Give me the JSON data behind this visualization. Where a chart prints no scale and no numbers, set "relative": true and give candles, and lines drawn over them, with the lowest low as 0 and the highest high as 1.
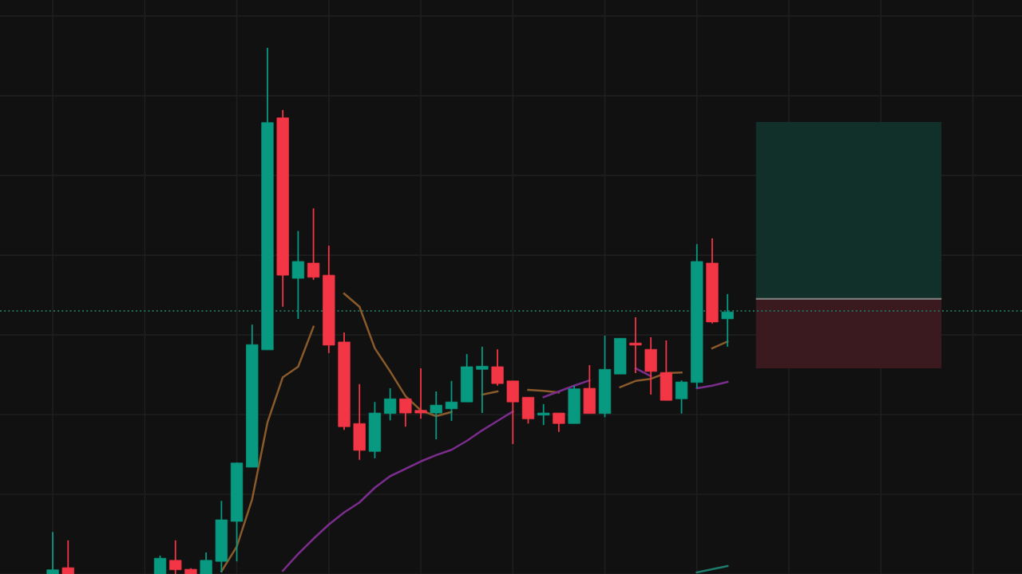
{
  "chart_data": {
    "type": "candlestick",
    "relative": true,
    "grid": true,
    "legend": false,
    "categories": [
      null,
      null,
      null,
      null,
      null,
      null,
      null,
      null,
      null,
      null,
      null,
      null,
      null,
      null,
      null,
      null,
      null,
      null,
      null,
      null,
      null,
      null,
      null,
      null,
      null,
      null,
      null,
      null,
      null,
      null,
      null,
      null,
      null,
      null,
      null,
      null,
      null,
      null,
      null,
      null,
      null,
      null,
      null,
      null,
      null
    ],
    "ohlc": [
      [
        0,
        0.08,
        0,
        0.008
      ],
      [
        0.012,
        0.064,
        0,
        0
      ],
      null,
      null,
      null,
      null,
      null,
      [
        0,
        0.035,
        0,
        0.03
      ],
      [
        0.026,
        0.064,
        0,
        0.008
      ],
      [
        0.009,
        0.011,
        0,
        0
      ],
      [
        0,
        0.041,
        0,
        0.026
      ],
      [
        0.024,
        0.139,
        0.003,
        0.103
      ],
      [
        0.1,
        0.212,
        0.024,
        0.211
      ],
      [
        0.203,
        0.474,
        0.203,
        0.436
      ],
      [
        0.426,
        1,
        0.426,
        0.858
      ],
      [
        0.867,
        0.882,
        0.508,
        0.568
      ],
      [
        0.562,
        0.652,
        0.485,
        0.594
      ],
      [
        0.591,
        0.695,
        0.559,
        0.564
      ],
      [
        0.568,
        0.624,
        0.42,
        0.435
      ],
      [
        0.441,
        0.459,
        0.274,
        0.28
      ],
      [
        0.286,
        0.361,
        0.217,
        0.235
      ],
      [
        0.233,
        0.327,
        0.22,
        0.306
      ],
      [
        0.305,
        0.353,
        0.292,
        0.333
      ],
      [
        0.333,
        0.333,
        0.28,
        0.306
      ],
      [
        0.311,
        0.391,
        0.295,
        0.306
      ],
      [
        0.306,
        0.347,
        0.256,
        0.321
      ],
      [
        0.314,
        0.367,
        0.291,
        0.327
      ],
      [
        0.327,
        0.418,
        0.327,
        0.394
      ],
      [
        0.389,
        0.432,
        0.306,
        0.395
      ],
      [
        0.394,
        0.427,
        0.358,
        0.362
      ],
      [
        0.367,
        0.367,
        0.247,
        0.327
      ],
      [
        0.336,
        0.336,
        0.286,
        0.295
      ],
      [
        0.302,
        0.323,
        0.283,
        0.305
      ],
      [
        0.306,
        0.306,
        0.27,
        0.286
      ],
      [
        0.286,
        0.358,
        0.286,
        0.352
      ],
      [
        0.353,
        0.397,
        0.305,
        0.305
      ],
      [
        0.305,
        0.453,
        0.298,
        0.389
      ],
      [
        0.38,
        0.448,
        0.38,
        0.448
      ],
      [
        0.438,
        0.488,
        0.382,
        0.435
      ],
      [
        0.427,
        0.45,
        0.341,
        0.385
      ],
      [
        0.383,
        0.444,
        0.33,
        0.33
      ],
      [
        0.333,
        0.368,
        0.305,
        0.365
      ],
      [
        0.364,
        0.627,
        0.353,
        0.594
      ],
      [
        0.591,
        0.638,
        0.476,
        0.479
      ],
      [
        0.485,
        0.532,
        0.432,
        0.498
      ]
    ],
    "colors": [
      "#089981",
      "#f23645",
      null,
      null,
      null,
      null,
      null,
      "#089981",
      "#f23645",
      "#f23645",
      "#089981",
      "#089981",
      "#089981",
      "#089981",
      "#089981",
      "#f23645",
      "#089981",
      "#f23645",
      "#f23645",
      "#f23645",
      "#f23645",
      "#089981",
      "#089981",
      "#f23645",
      "#f23645",
      "#089981",
      "#089981",
      "#089981",
      "#089981",
      "#f23645",
      "#f23645",
      "#f23645",
      "#089981",
      "#f23645",
      "#089981",
      "#f23645",
      "#089981",
      "#089981",
      "#f23645",
      "#f23645",
      "#f23645",
      "#089981",
      "#089981",
      "#f23645",
      "#089981"
    ],
    "series": [
      {
        "type": "line",
        "color": "#8a5a2b",
        "values": [
          null,
          null,
          null,
          null,
          null,
          null,
          null,
          null,
          null,
          null,
          null,
          0.005,
          0.052,
          0.142,
          0.288,
          0.374,
          0.394,
          0.47,
          null,
          0.533,
          0.508,
          0.429,
          0.385,
          0.338,
          0.311,
          0.3,
          0.308,
          null,
          0.341,
          0.347,
          null,
          0.35,
          0.348,
          0.345,
          null,
          null,
          null,
          0.355,
          0.367,
          0.371,
          0.382,
          0.383,
          null,
          0.429,
          0.442
        ]
      },
      {
        "type": "line",
        "color": "#7b2d8e",
        "values": [
          null,
          null,
          null,
          null,
          null,
          null,
          null,
          null,
          null,
          null,
          null,
          null,
          null,
          null,
          null,
          0.006,
          0.038,
          0.067,
          0.094,
          0.117,
          0.136,
          0.164,
          0.186,
          0.2,
          0.214,
          0.226,
          0.236,
          0.253,
          0.273,
          0.291,
          0.309,
          null,
          0.336,
          0.347,
          0.358,
          0.368,
          null,
          null,
          0.391,
          0.376,
          null,
          null,
          0.353,
          0.358,
          0.365
        ]
      },
      {
        "type": "line",
        "color": "#1e7a6a",
        "values": [
          null,
          null,
          null,
          null,
          null,
          null,
          null,
          null,
          null,
          null,
          null,
          null,
          null,
          null,
          null,
          null,
          null,
          null,
          null,
          null,
          null,
          null,
          null,
          null,
          null,
          null,
          null,
          null,
          null,
          null,
          null,
          null,
          null,
          null,
          null,
          null,
          null,
          null,
          null,
          null,
          null,
          null,
          0.003,
          0.009,
          0.015
        ]
      }
    ],
    "ref_lines": [
      {
        "axis": "y",
        "value": 0.5,
        "color": "#1f6e5a",
        "line_style": "dotted"
      }
    ]
  }
}
